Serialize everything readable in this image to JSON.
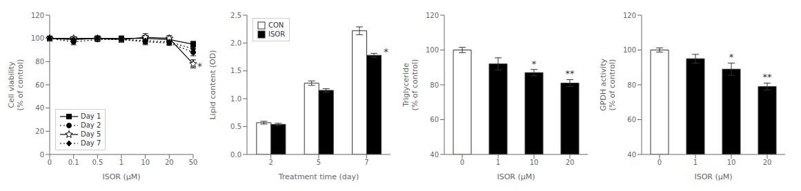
{
  "chart_data": [
    {
      "type": "line",
      "x_label": "ISOR (μM)",
      "y_label": "Cell viability\n(% of control)",
      "categories": [
        0,
        0.1,
        0.5,
        1,
        10,
        20,
        50
      ],
      "ylim": [
        0,
        120
      ],
      "yticks": [
        0,
        20,
        40,
        60,
        80,
        100,
        120
      ],
      "grid": false,
      "legend": "lower left",
      "series": [
        {
          "name": "Day 1",
          "color": "black",
          "marker": "square",
          "line_style": "solid",
          "values": [
            100,
            99,
            100,
            100,
            100,
            99,
            95
          ],
          "errors": [
            1.2,
            2.0,
            1.5,
            2.0,
            2.5,
            2.0,
            2.5
          ]
        },
        {
          "name": "Day 2",
          "color": "black",
          "marker": "circle",
          "line_style": "dotted",
          "values": [
            100,
            97,
            99,
            99,
            97,
            96,
            88
          ],
          "errors": [
            1.5,
            2.5,
            1.5,
            2.0,
            2.5,
            2.0,
            3.0
          ]
        },
        {
          "name": "Day 5",
          "color": "black",
          "marker": "star",
          "line_style": "solid",
          "values": [
            100,
            100,
            100,
            99,
            101,
            100,
            78
          ],
          "errors": [
            1.5,
            1.5,
            2.0,
            2.0,
            3.0,
            2.5,
            3.5
          ]
        },
        {
          "name": "Day 7",
          "color": "black",
          "marker": "diamond",
          "line_style": "dotted",
          "values": [
            100,
            99,
            100,
            99,
            98,
            97,
            91
          ],
          "errors": [
            1.5,
            2.0,
            2.0,
            2.0,
            2.5,
            2.5,
            3.0
          ]
        }
      ],
      "annotations": [
        {
          "text": "*",
          "category": 50,
          "y": 76
        }
      ]
    },
    {
      "type": "bar",
      "x_label": "Treatment time (day)",
      "y_label": "Lipid content (OD)",
      "categories": [
        2,
        5,
        7
      ],
      "ylim": [
        0.0,
        2.5
      ],
      "yticks": [
        {
          "value": 0,
          "label": "0.0"
        },
        0.5,
        {
          "value": 1,
          "label": "1.0"
        },
        1.5,
        {
          "value": 2,
          "label": "2.0"
        },
        2.5
      ],
      "grid": false,
      "legend": "upper left",
      "series": [
        {
          "name": "CON",
          "color": "white",
          "values": [
            0.57,
            1.28,
            2.22
          ],
          "errors": [
            0.025,
            0.04,
            0.07
          ]
        },
        {
          "name": "ISOR",
          "color": "black",
          "values": [
            0.54,
            1.15,
            1.78
          ],
          "errors": [
            0.02,
            0.03,
            0.035
          ]
        }
      ],
      "annotations": [
        {
          "text": "*",
          "category": 7,
          "series": "ISOR"
        }
      ]
    },
    {
      "type": "bar",
      "x_label": "ISOR (μM)",
      "y_label": "Triglyceride\n(% of control)",
      "categories": [
        "0",
        "1",
        "10",
        "20"
      ],
      "values": [
        100,
        92,
        87,
        81
      ],
      "errors": [
        1.5,
        3.5,
        1.8,
        2.0
      ],
      "colors": [
        "white",
        "black",
        "black",
        "black"
      ],
      "ylim": [
        40,
        120
      ],
      "yticks": [
        40,
        60,
        80,
        100,
        120
      ],
      "grid": false,
      "annotations": [
        {
          "text": "*",
          "category": "10"
        },
        {
          "text": "**",
          "category": "20"
        }
      ]
    },
    {
      "type": "bar",
      "x_label": "ISOR (μM)",
      "y_label": "GPDH activity\n(% of control)",
      "categories": [
        "0",
        "1",
        "10",
        "20"
      ],
      "values": [
        100,
        95,
        89,
        79
      ],
      "errors": [
        1.2,
        2.5,
        3.5,
        2.0
      ],
      "colors": [
        "white",
        "black",
        "black",
        "black"
      ],
      "ylim": [
        40,
        120
      ],
      "yticks": [
        40,
        60,
        80,
        100,
        120
      ],
      "grid": false,
      "annotations": [
        {
          "text": "*",
          "category": "10"
        },
        {
          "text": "**",
          "category": "20"
        }
      ]
    }
  ]
}
